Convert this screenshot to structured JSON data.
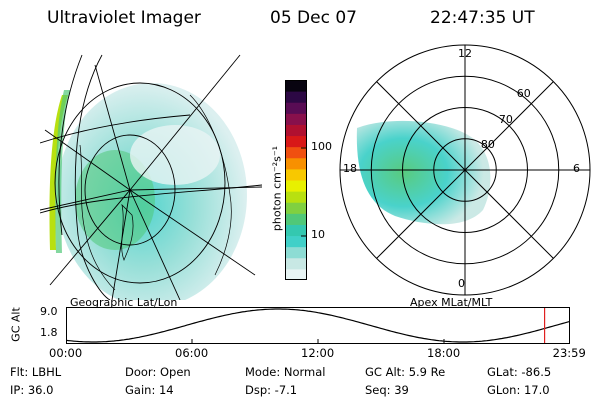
{
  "header": {
    "instrument": "Ultraviolet Imager",
    "date": "05 Dec 07",
    "time": "22:47:35 UT"
  },
  "colorbar": {
    "label": "photon cm⁻²s⁻¹",
    "ticks": [
      {
        "label": "100",
        "value": 100
      },
      {
        "label": "10",
        "value": 10
      }
    ],
    "colors": [
      "#e8f4f4",
      "#c8e8e4",
      "#8ddcd4",
      "#40d0c8",
      "#34c8b0",
      "#50c878",
      "#80d040",
      "#b8e010",
      "#e8f000",
      "#f8c800",
      "#f89000",
      "#f05010",
      "#d81818",
      "#b01030",
      "#88104c",
      "#580c54",
      "#2c0844",
      "#080410"
    ]
  },
  "left_panel": {
    "caption": "Geographic Lat/Lon"
  },
  "right_panel": {
    "caption": "Apex MLat/MLT",
    "mlt_labels": [
      {
        "label": "12",
        "angle_deg": 0
      },
      {
        "label": "18",
        "angle_deg": 270
      },
      {
        "label": "6",
        "angle_deg": 90
      },
      {
        "label": "0",
        "angle_deg": 180
      }
    ],
    "lat_labels": [
      {
        "label": "60",
        "lat": 60
      },
      {
        "label": "70",
        "lat": 70
      },
      {
        "label": "80",
        "lat": 80
      }
    ]
  },
  "altitude_plot": {
    "ylabel": "GC Alt",
    "yticks": [
      "9.0",
      "1.8"
    ],
    "ylim": [
      1.8,
      9.0
    ],
    "xticks": [
      "00:00",
      "06:00",
      "12:00",
      "18:00",
      "23:59"
    ],
    "current_time_hours": 22.79
  },
  "info": {
    "filter": "Flt: LBHL",
    "ip": "IP: 36.0",
    "door": "Door: Open",
    "gain": "Gain: 14",
    "mode": "Mode: Normal",
    "dsp": "Dsp:   -7.1",
    "gc_alt": "GC Alt: 5.9 Re",
    "seq": "Seq: 39",
    "glat": "GLat: -86.5",
    "glon": "GLon:  17.0"
  },
  "style": {
    "marker_color": "#e02020",
    "line_color": "#000000"
  }
}
